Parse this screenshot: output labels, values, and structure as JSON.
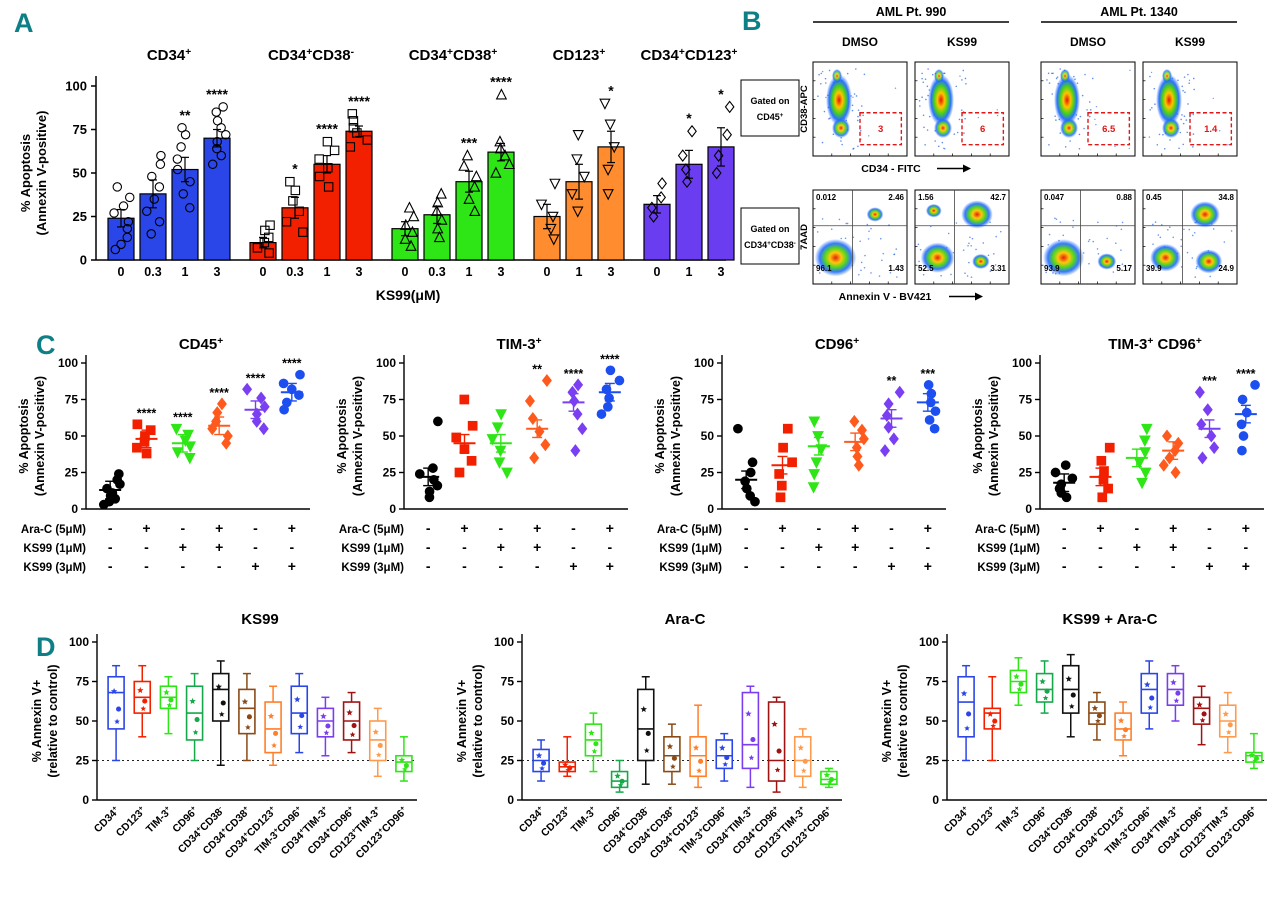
{
  "figure": {
    "panels": {
      "a_label": "A",
      "b_label": "B",
      "c_label": "C",
      "d_label": "D"
    },
    "accent_teal": "#0e7f87"
  },
  "panelA": {
    "ylabel_line1": "% Apoptosis",
    "ylabel_line2": "(Annexin V-positive)",
    "xlabel": "KS99(μM)",
    "yticks": [
      0,
      25,
      50,
      75,
      100
    ],
    "groups": [
      {
        "title": "CD34^+",
        "color": "#2b46e8",
        "marker": "circle",
        "doses": [
          "0",
          "0.3",
          "1",
          "3"
        ],
        "values": [
          24,
          38,
          52,
          70
        ],
        "err": [
          5,
          8,
          7,
          5
        ],
        "sig": [
          "",
          "",
          "**",
          "****"
        ],
        "points": [
          [
            6,
            9,
            13,
            18,
            22,
            27,
            31,
            36,
            42
          ],
          [
            15,
            22,
            28,
            35,
            42,
            48,
            55,
            60
          ],
          [
            30,
            38,
            45,
            52,
            58,
            65,
            72,
            76
          ],
          [
            55,
            60,
            64,
            68,
            72,
            76,
            80,
            85,
            88
          ]
        ]
      },
      {
        "title": "CD34^+CD38^-",
        "color": "#f32000",
        "marker": "square",
        "doses": [
          "0",
          "0.3",
          "1",
          "3"
        ],
        "values": [
          10,
          30,
          55,
          74
        ],
        "err": [
          3,
          6,
          5,
          3
        ],
        "sig": [
          "",
          "*",
          "****",
          "****"
        ],
        "points": [
          [
            4,
            7,
            10,
            13,
            17,
            20
          ],
          [
            16,
            22,
            28,
            34,
            40,
            45
          ],
          [
            42,
            48,
            53,
            58,
            63,
            68
          ],
          [
            65,
            69,
            73,
            76,
            80,
            84
          ]
        ]
      },
      {
        "title": "CD34^+CD38^+",
        "color": "#2ee516",
        "marker": "triangle-up",
        "doses": [
          "0",
          "0.3",
          "1",
          "3"
        ],
        "values": [
          18,
          26,
          45,
          62
        ],
        "err": [
          4,
          5,
          6,
          5
        ],
        "sig": [
          "",
          "",
          "***",
          "****"
        ],
        "points": [
          [
            8,
            12,
            16,
            20,
            25,
            30
          ],
          [
            13,
            18,
            23,
            28,
            33,
            38
          ],
          [
            28,
            35,
            42,
            48,
            54,
            60
          ],
          [
            50,
            55,
            60,
            64,
            68,
            95
          ]
        ]
      },
      {
        "title": "CD123^+",
        "color": "#ff8c2e",
        "marker": "triangle-down",
        "doses": [
          "0",
          "1",
          "3"
        ],
        "values": [
          25,
          45,
          65
        ],
        "err": [
          7,
          10,
          9
        ],
        "sig": [
          "",
          "",
          "*"
        ],
        "points": [
          [
            12,
            18,
            25,
            32,
            44
          ],
          [
            28,
            38,
            48,
            58,
            72
          ],
          [
            38,
            52,
            65,
            78,
            90
          ]
        ]
      },
      {
        "title": "CD34^+CD123^+",
        "color": "#6a3df0",
        "marker": "diamond",
        "doses": [
          "0",
          "1",
          "3"
        ],
        "values": [
          32,
          55,
          65
        ],
        "err": [
          5,
          8,
          11
        ],
        "sig": [
          "",
          "*",
          "*"
        ],
        "points": [
          [
            25,
            30,
            36,
            44
          ],
          [
            45,
            52,
            60,
            74
          ],
          [
            50,
            60,
            72,
            88
          ]
        ]
      }
    ]
  },
  "panelB": {
    "patients": [
      {
        "name": "AML Pt. 990"
      },
      {
        "name": "AML Pt. 1340"
      }
    ],
    "conditions": [
      "DMSO",
      "KS99",
      "DMSO",
      "KS99"
    ],
    "row1": {
      "gate_label_line1": "Gated on",
      "gate_label_line2": "CD45^+",
      "ylabel": "CD38-APC",
      "xlabel": "CD34 - FITC",
      "gate_values": [
        "3",
        "6",
        "6.5",
        "1.4"
      ]
    },
    "row2": {
      "gate_label_line1": "Gated on",
      "gate_label_line2": "CD34^+CD38^-",
      "ylabel": "7AAD",
      "xlabel": "Annexin V - BV421",
      "quadrants": [
        {
          "ul": "0.012",
          "ur": "2.46",
          "ll": "96.1",
          "lr": "1.43"
        },
        {
          "ul": "1.56",
          "ur": "42.7",
          "ll": "52.5",
          "lr": "3.31"
        },
        {
          "ul": "0.047",
          "ur": "0.88",
          "ll": "93.9",
          "lr": "5.17"
        },
        {
          "ul": "0.45",
          "ur": "34.8",
          "ll": "39.9",
          "lr": "24.9"
        }
      ]
    }
  },
  "panelC": {
    "ylabel_line1": "% Apoptosis",
    "ylabel_line2": "(Annexin V-positive)",
    "yticks": [
      0,
      25,
      50,
      75,
      100
    ],
    "row_labels": [
      "Ara-C (5μM)",
      "KS99 (1μM)",
      "KS99 (3μM)"
    ],
    "sign_matrix": [
      [
        "-",
        "+",
        "-",
        "+",
        "-",
        "+"
      ],
      [
        "-",
        "-",
        "+",
        "+",
        "-",
        "-"
      ],
      [
        "-",
        "-",
        "-",
        "-",
        "+",
        "+"
      ]
    ],
    "group_styles": [
      {
        "color": "#000000",
        "marker": "circle"
      },
      {
        "color": "#f32000",
        "marker": "square"
      },
      {
        "color": "#2ee516",
        "marker": "triangle-down"
      },
      {
        "color": "#ff5a1e",
        "marker": "diamond"
      },
      {
        "color": "#7b3ff2",
        "marker": "diamond"
      },
      {
        "color": "#1d4ff0",
        "marker": "circle"
      }
    ],
    "plots": [
      {
        "title": "CD45^+",
        "sig": [
          "",
          "****",
          "****",
          "****",
          "****",
          "****"
        ],
        "means": [
          13,
          48,
          45,
          57,
          68,
          80
        ],
        "points": [
          [
            3,
            5,
            7,
            9,
            11,
            14,
            17,
            20,
            24
          ],
          [
            38,
            42,
            46,
            50,
            54,
            58
          ],
          [
            35,
            39,
            43,
            47,
            51,
            55
          ],
          [
            45,
            50,
            55,
            60,
            66,
            72
          ],
          [
            55,
            60,
            65,
            70,
            76,
            82
          ],
          [
            68,
            73,
            78,
            82,
            86,
            92
          ]
        ]
      },
      {
        "title": "TIM-3^+",
        "sig": [
          "",
          "",
          "",
          "**",
          "****",
          "****"
        ],
        "means": [
          22,
          45,
          45,
          55,
          73,
          80
        ],
        "points": [
          [
            8,
            12,
            16,
            20,
            24,
            28,
            60
          ],
          [
            25,
            33,
            41,
            49,
            57,
            75
          ],
          [
            25,
            32,
            40,
            48,
            56,
            65
          ],
          [
            35,
            44,
            53,
            62,
            74,
            88
          ],
          [
            40,
            55,
            65,
            74,
            80,
            85
          ],
          [
            65,
            70,
            76,
            82,
            88,
            95
          ]
        ]
      },
      {
        "title": "CD96^+",
        "sig": [
          "",
          "",
          "",
          "",
          "**",
          "***"
        ],
        "means": [
          20,
          30,
          43,
          46,
          62,
          73
        ],
        "points": [
          [
            5,
            9,
            14,
            19,
            25,
            32,
            55
          ],
          [
            8,
            16,
            24,
            32,
            42,
            55
          ],
          [
            15,
            24,
            32,
            41,
            50,
            60
          ],
          [
            30,
            36,
            42,
            48,
            54,
            60
          ],
          [
            40,
            48,
            56,
            64,
            72,
            80
          ],
          [
            55,
            61,
            67,
            73,
            79,
            85
          ]
        ]
      },
      {
        "title": "TIM-3^+ CD96^+",
        "sig": [
          "",
          "",
          "",
          "",
          "***",
          "****"
        ],
        "means": [
          18,
          22,
          35,
          40,
          55,
          65
        ],
        "points": [
          [
            8,
            11,
            14,
            17,
            21,
            25,
            30
          ],
          [
            8,
            14,
            20,
            26,
            33,
            42
          ],
          [
            18,
            25,
            32,
            39,
            47,
            55
          ],
          [
            25,
            30,
            35,
            40,
            45,
            50
          ],
          [
            35,
            42,
            50,
            58,
            68,
            80
          ],
          [
            40,
            50,
            58,
            66,
            75,
            85
          ]
        ]
      }
    ]
  },
  "panelD": {
    "ylabel_line1": "% Annexin V+",
    "ylabel_line2": "(relative to control)",
    "yticks": [
      0,
      25,
      50,
      75,
      100
    ],
    "dashed_line": 25,
    "categories": [
      "CD34^+",
      "CD123^+",
      "TIM-3^+",
      "CD96^+",
      "CD34^+CD38^-",
      "CD34^+CD38^+",
      "CD34^+CD123^+",
      "TIM-3^+CD96^+",
      "CD34^+TIM-3^+",
      "CD34^+CD96^+",
      "CD123^+TIM-3^+",
      "CD123^+CD96^+"
    ],
    "colors": [
      "#2b46e8",
      "#f32000",
      "#2ee516",
      "#17a84b",
      "#111111",
      "#8a4a16",
      "#ff7f2a",
      "#2b46e8",
      "#7a3df0",
      "#a01313",
      "#ff9a4d",
      "#2ee516"
    ],
    "plots": [
      {
        "title": "KS99",
        "boxes": [
          [
            25,
            45,
            68,
            78,
            85
          ],
          [
            40,
            55,
            65,
            75,
            85
          ],
          [
            42,
            58,
            65,
            72,
            78
          ],
          [
            25,
            38,
            55,
            72,
            80
          ],
          [
            22,
            50,
            70,
            80,
            88
          ],
          [
            25,
            42,
            58,
            70,
            80
          ],
          [
            22,
            30,
            45,
            62,
            72
          ],
          [
            30,
            42,
            55,
            72,
            80
          ],
          [
            28,
            40,
            50,
            58,
            65
          ],
          [
            30,
            38,
            50,
            62,
            68
          ],
          [
            15,
            25,
            38,
            50,
            58
          ],
          [
            12,
            18,
            24,
            28,
            40
          ]
        ]
      },
      {
        "title": "Ara-C",
        "boxes": [
          [
            12,
            18,
            25,
            32,
            38
          ],
          [
            15,
            18,
            21,
            24,
            40
          ],
          [
            18,
            28,
            38,
            48,
            55
          ],
          [
            5,
            8,
            12,
            18,
            25
          ],
          [
            10,
            25,
            45,
            70,
            78
          ],
          [
            10,
            18,
            28,
            40,
            48
          ],
          [
            8,
            15,
            28,
            40,
            60
          ],
          [
            12,
            20,
            28,
            38,
            42
          ],
          [
            8,
            20,
            35,
            68,
            72
          ],
          [
            5,
            12,
            25,
            62,
            65
          ],
          [
            8,
            15,
            25,
            40,
            45
          ],
          [
            8,
            10,
            13,
            18,
            20
          ]
        ]
      },
      {
        "title": "KS99 + Ara-C",
        "boxes": [
          [
            25,
            40,
            62,
            78,
            85
          ],
          [
            25,
            45,
            55,
            58,
            78
          ],
          [
            60,
            68,
            75,
            82,
            90
          ],
          [
            55,
            62,
            70,
            80,
            88
          ],
          [
            40,
            55,
            70,
            85,
            92
          ],
          [
            38,
            48,
            55,
            62,
            68
          ],
          [
            28,
            38,
            45,
            55,
            62
          ],
          [
            45,
            55,
            70,
            80,
            88
          ],
          [
            50,
            60,
            70,
            80,
            85
          ],
          [
            35,
            48,
            58,
            65,
            72
          ],
          [
            30,
            40,
            50,
            60,
            68
          ],
          [
            20,
            24,
            28,
            30,
            42
          ]
        ]
      }
    ]
  }
}
